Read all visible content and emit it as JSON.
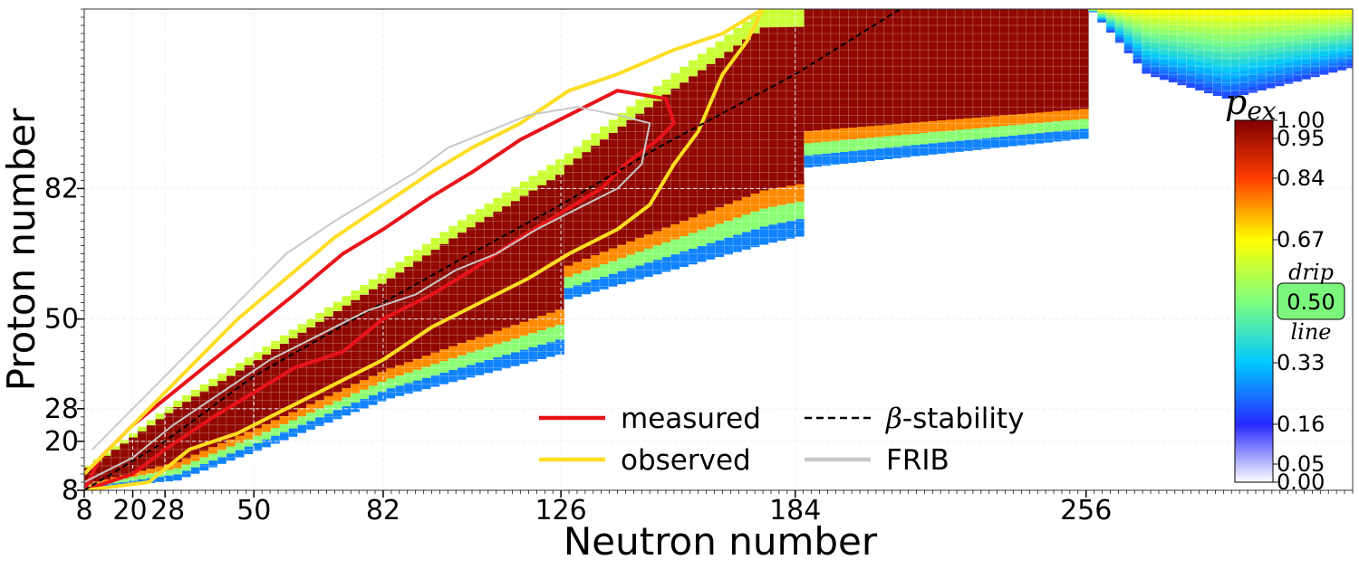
{
  "chart_data": {
    "type": "heatmap",
    "xlabel": "Neutron number",
    "ylabel": "Proton number",
    "xlim": [
      8,
      322
    ],
    "ylim": [
      8,
      126
    ],
    "xticks": [
      8,
      20,
      28,
      50,
      82,
      126,
      184,
      256
    ],
    "yticks": [
      8,
      20,
      28,
      50,
      82
    ],
    "magic_numbers_shown": [
      20,
      28,
      50,
      82,
      126,
      184
    ],
    "colorbar": {
      "title": "p_ex",
      "title_base": "p",
      "title_sub": "ex",
      "ticks": [
        "1.00",
        "0.95",
        "0.84",
        "0.67",
        "0.50",
        "0.33",
        "0.16",
        "0.05",
        "0.00"
      ],
      "tick_values": [
        1.0,
        0.95,
        0.84,
        0.67,
        0.5,
        0.33,
        0.16,
        0.05,
        0.0
      ],
      "highlight": "0.50",
      "highlight_value": 0.5,
      "highlight_top": "drip",
      "highlight_bottom": "line",
      "colors": [
        "#ffffff",
        "#0000ff",
        "#00ffff",
        "#7fff7f",
        "#ffff00",
        "#ff0000",
        "#800000"
      ]
    },
    "series": [
      {
        "name": "measured",
        "color": "#e8141a",
        "style": "solid",
        "points": [
          [
            8,
            8
          ],
          [
            20,
            12
          ],
          [
            28,
            18
          ],
          [
            40,
            26
          ],
          [
            50,
            32
          ],
          [
            60,
            38
          ],
          [
            72,
            42
          ],
          [
            82,
            50
          ],
          [
            94,
            56
          ],
          [
            104,
            62
          ],
          [
            116,
            70
          ],
          [
            126,
            76
          ],
          [
            136,
            82
          ],
          [
            142,
            88
          ],
          [
            150,
            94
          ],
          [
            154,
            98
          ],
          [
            152,
            104
          ],
          [
            140,
            106
          ],
          [
            128,
            100
          ],
          [
            116,
            94
          ],
          [
            104,
            86
          ],
          [
            94,
            80
          ],
          [
            82,
            72
          ],
          [
            72,
            66
          ],
          [
            60,
            56
          ],
          [
            50,
            48
          ],
          [
            40,
            40
          ],
          [
            30,
            32
          ],
          [
            20,
            24
          ],
          [
            12,
            16
          ],
          [
            8,
            8
          ]
        ]
      },
      {
        "name": "observed",
        "color": "#ffdd22",
        "style": "solid",
        "points": [
          [
            8,
            8
          ],
          [
            24,
            10
          ],
          [
            34,
            18
          ],
          [
            46,
            22
          ],
          [
            58,
            28
          ],
          [
            70,
            34
          ],
          [
            82,
            40
          ],
          [
            94,
            48
          ],
          [
            106,
            54
          ],
          [
            118,
            60
          ],
          [
            128,
            66
          ],
          [
            140,
            72
          ],
          [
            148,
            78
          ],
          [
            154,
            88
          ],
          [
            160,
            96
          ],
          [
            166,
            110
          ],
          [
            172,
            118
          ],
          [
            176,
            126
          ],
          [
            166,
            120
          ],
          [
            154,
            116
          ],
          [
            140,
            110
          ],
          [
            128,
            106
          ],
          [
            116,
            98
          ],
          [
            104,
            92
          ],
          [
            94,
            86
          ],
          [
            82,
            78
          ],
          [
            70,
            70
          ],
          [
            58,
            60
          ],
          [
            46,
            50
          ],
          [
            36,
            40
          ],
          [
            26,
            30
          ],
          [
            16,
            20
          ],
          [
            8,
            12
          ]
        ]
      },
      {
        "name": "β-stability",
        "name_prefix": "β",
        "name_suffix": "-stability",
        "color": "#000000",
        "style": "dashed",
        "points": [
          [
            8,
            8
          ],
          [
            28,
            20
          ],
          [
            50,
            36
          ],
          [
            82,
            54
          ],
          [
            100,
            64
          ],
          [
            126,
            78
          ],
          [
            150,
            92
          ],
          [
            184,
            110
          ],
          [
            210,
            126
          ]
        ]
      },
      {
        "name": "FRIB",
        "color": "#c8c8c8",
        "style": "solid",
        "points": [
          [
            8,
            10
          ],
          [
            20,
            16
          ],
          [
            30,
            24
          ],
          [
            42,
            32
          ],
          [
            54,
            40
          ],
          [
            66,
            46
          ],
          [
            78,
            52
          ],
          [
            90,
            56
          ],
          [
            100,
            62
          ],
          [
            110,
            66
          ],
          [
            120,
            72
          ],
          [
            128,
            76
          ],
          [
            140,
            82
          ],
          [
            146,
            88
          ],
          [
            148,
            98
          ],
          [
            140,
            100
          ],
          [
            130,
            102
          ],
          [
            118,
            100
          ],
          [
            108,
            96
          ],
          [
            98,
            92
          ],
          [
            90,
            86
          ],
          [
            80,
            80
          ],
          [
            70,
            74
          ],
          [
            58,
            66
          ],
          [
            48,
            56
          ],
          [
            38,
            46
          ],
          [
            28,
            36
          ],
          [
            18,
            26
          ],
          [
            10,
            18
          ]
        ]
      }
    ],
    "legend_placement": "lower-center",
    "grid": true
  }
}
